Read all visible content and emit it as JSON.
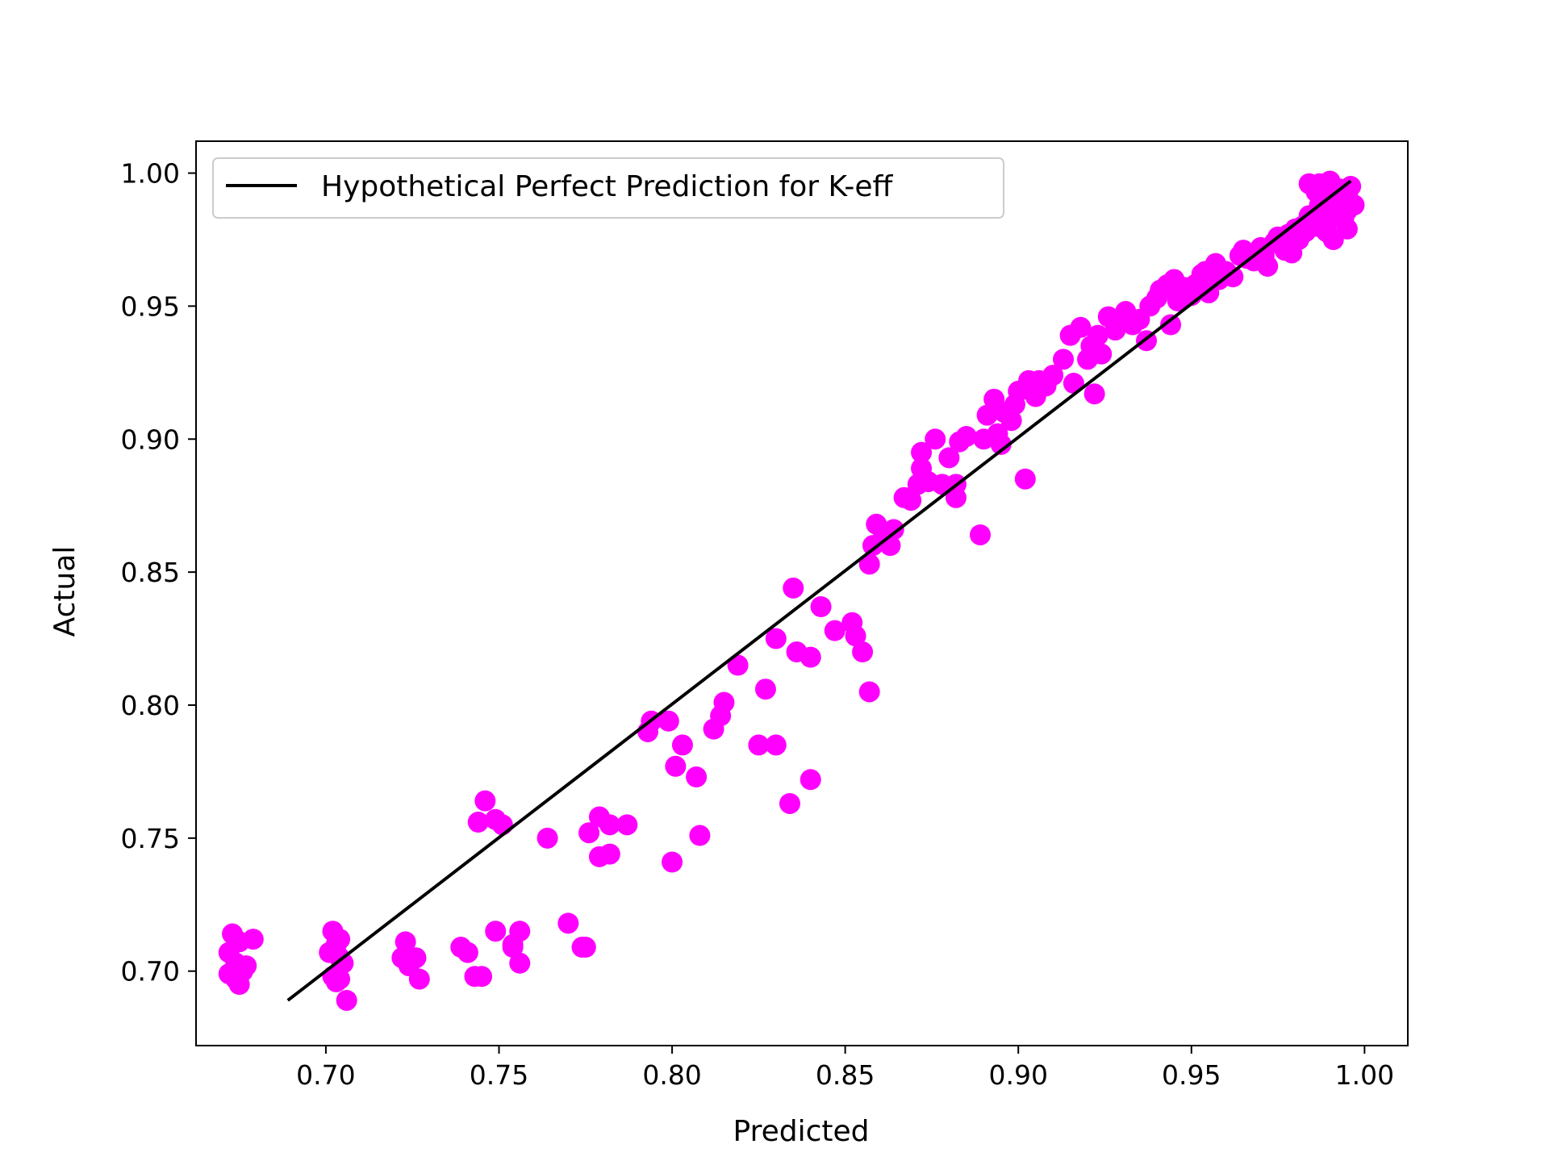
{
  "chart_data": {
    "type": "scatter",
    "title": "",
    "xlabel": "Predicted",
    "ylabel": "Actual",
    "xlim": [
      0.6625,
      1.0125
    ],
    "ylim": [
      0.672,
      1.012
    ],
    "xticks": [
      "0.70",
      "0.75",
      "0.80",
      "0.85",
      "0.90",
      "0.95",
      "1.00"
    ],
    "yticks": [
      "0.70",
      "0.75",
      "0.80",
      "0.85",
      "0.90",
      "0.95",
      "1.00"
    ],
    "grid": false,
    "legend": {
      "position": "upper-left",
      "entries": [
        {
          "label": "Hypothetical Perfect Prediction for K-eff",
          "kind": "line",
          "color": "#000000"
        }
      ]
    },
    "series": [
      {
        "name": "Hypothetical Perfect Prediction for K-eff",
        "kind": "line",
        "color": "#000000",
        "points": [
          [
            0.689,
            0.689
          ],
          [
            0.996,
            0.997
          ]
        ]
      },
      {
        "kind": "scatter",
        "color": "#ff00ff",
        "points": [
          [
            0.673,
            0.714
          ],
          [
            0.672,
            0.707
          ],
          [
            0.675,
            0.711
          ],
          [
            0.674,
            0.703
          ],
          [
            0.672,
            0.699
          ],
          [
            0.674,
            0.697
          ],
          [
            0.675,
            0.695
          ],
          [
            0.676,
            0.7
          ],
          [
            0.677,
            0.702
          ],
          [
            0.679,
            0.712
          ],
          [
            0.702,
            0.715
          ],
          [
            0.703,
            0.71
          ],
          [
            0.701,
            0.707
          ],
          [
            0.704,
            0.712
          ],
          [
            0.704,
            0.705
          ],
          [
            0.705,
            0.703
          ],
          [
            0.702,
            0.698
          ],
          [
            0.703,
            0.696
          ],
          [
            0.704,
            0.697
          ],
          [
            0.706,
            0.689
          ],
          [
            0.723,
            0.711
          ],
          [
            0.722,
            0.705
          ],
          [
            0.724,
            0.702
          ],
          [
            0.726,
            0.705
          ],
          [
            0.727,
            0.697
          ],
          [
            0.739,
            0.709
          ],
          [
            0.741,
            0.707
          ],
          [
            0.743,
            0.698
          ],
          [
            0.745,
            0.698
          ],
          [
            0.749,
            0.715
          ],
          [
            0.754,
            0.71
          ],
          [
            0.756,
            0.715
          ],
          [
            0.756,
            0.703
          ],
          [
            0.754,
            0.709
          ],
          [
            0.746,
            0.764
          ],
          [
            0.744,
            0.756
          ],
          [
            0.749,
            0.757
          ],
          [
            0.751,
            0.755
          ],
          [
            0.764,
            0.75
          ],
          [
            0.77,
            0.718
          ],
          [
            0.774,
            0.709
          ],
          [
            0.775,
            0.709
          ],
          [
            0.776,
            0.752
          ],
          [
            0.779,
            0.758
          ],
          [
            0.782,
            0.755
          ],
          [
            0.787,
            0.755
          ],
          [
            0.779,
            0.743
          ],
          [
            0.782,
            0.744
          ],
          [
            0.793,
            0.79
          ],
          [
            0.794,
            0.794
          ],
          [
            0.799,
            0.794
          ],
          [
            0.801,
            0.777
          ],
          [
            0.803,
            0.785
          ],
          [
            0.807,
            0.773
          ],
          [
            0.808,
            0.751
          ],
          [
            0.8,
            0.741
          ],
          [
            0.812,
            0.791
          ],
          [
            0.814,
            0.796
          ],
          [
            0.815,
            0.801
          ],
          [
            0.819,
            0.815
          ],
          [
            0.825,
            0.785
          ],
          [
            0.827,
            0.806
          ],
          [
            0.83,
            0.785
          ],
          [
            0.83,
            0.825
          ],
          [
            0.834,
            0.763
          ],
          [
            0.835,
            0.844
          ],
          [
            0.836,
            0.82
          ],
          [
            0.84,
            0.818
          ],
          [
            0.84,
            0.772
          ],
          [
            0.843,
            0.837
          ],
          [
            0.847,
            0.828
          ],
          [
            0.852,
            0.831
          ],
          [
            0.853,
            0.826
          ],
          [
            0.855,
            0.82
          ],
          [
            0.857,
            0.805
          ],
          [
            0.857,
            0.853
          ],
          [
            0.858,
            0.86
          ],
          [
            0.859,
            0.868
          ],
          [
            0.861,
            0.865
          ],
          [
            0.863,
            0.86
          ],
          [
            0.864,
            0.866
          ],
          [
            0.867,
            0.878
          ],
          [
            0.869,
            0.877
          ],
          [
            0.871,
            0.883
          ],
          [
            0.872,
            0.889
          ],
          [
            0.872,
            0.895
          ],
          [
            0.874,
            0.884
          ],
          [
            0.876,
            0.9
          ],
          [
            0.878,
            0.883
          ],
          [
            0.88,
            0.893
          ],
          [
            0.882,
            0.878
          ],
          [
            0.882,
            0.883
          ],
          [
            0.883,
            0.899
          ],
          [
            0.885,
            0.901
          ],
          [
            0.889,
            0.864
          ],
          [
            0.89,
            0.9
          ],
          [
            0.891,
            0.909
          ],
          [
            0.893,
            0.915
          ],
          [
            0.894,
            0.902
          ],
          [
            0.895,
            0.898
          ],
          [
            0.896,
            0.91
          ],
          [
            0.898,
            0.907
          ],
          [
            0.899,
            0.913
          ],
          [
            0.9,
            0.918
          ],
          [
            0.902,
            0.885
          ],
          [
            0.903,
            0.922
          ],
          [
            0.905,
            0.916
          ],
          [
            0.906,
            0.922
          ],
          [
            0.908,
            0.92
          ],
          [
            0.91,
            0.924
          ],
          [
            0.913,
            0.93
          ],
          [
            0.915,
            0.939
          ],
          [
            0.916,
            0.921
          ],
          [
            0.918,
            0.942
          ],
          [
            0.92,
            0.93
          ],
          [
            0.921,
            0.935
          ],
          [
            0.922,
            0.917
          ],
          [
            0.923,
            0.939
          ],
          [
            0.924,
            0.932
          ],
          [
            0.926,
            0.946
          ],
          [
            0.928,
            0.941
          ],
          [
            0.929,
            0.944
          ],
          [
            0.931,
            0.948
          ],
          [
            0.933,
            0.943
          ],
          [
            0.935,
            0.945
          ],
          [
            0.937,
            0.937
          ],
          [
            0.938,
            0.95
          ],
          [
            0.94,
            0.953
          ],
          [
            0.941,
            0.956
          ],
          [
            0.943,
            0.958
          ],
          [
            0.944,
            0.943
          ],
          [
            0.945,
            0.96
          ],
          [
            0.946,
            0.952
          ],
          [
            0.948,
            0.957
          ],
          [
            0.95,
            0.954
          ],
          [
            0.951,
            0.958
          ],
          [
            0.953,
            0.962
          ],
          [
            0.954,
            0.963
          ],
          [
            0.955,
            0.955
          ],
          [
            0.957,
            0.966
          ],
          [
            0.958,
            0.96
          ],
          [
            0.96,
            0.963
          ],
          [
            0.962,
            0.961
          ],
          [
            0.964,
            0.969
          ],
          [
            0.965,
            0.971
          ],
          [
            0.966,
            0.968
          ],
          [
            0.968,
            0.967
          ],
          [
            0.97,
            0.972
          ],
          [
            0.971,
            0.969
          ],
          [
            0.972,
            0.965
          ],
          [
            0.974,
            0.974
          ],
          [
            0.975,
            0.976
          ],
          [
            0.976,
            0.973
          ],
          [
            0.977,
            0.971
          ],
          [
            0.978,
            0.977
          ],
          [
            0.979,
            0.97
          ],
          [
            0.98,
            0.979
          ],
          [
            0.981,
            0.975
          ],
          [
            0.982,
            0.98
          ],
          [
            0.983,
            0.978
          ],
          [
            0.984,
            0.984
          ],
          [
            0.984,
            0.996
          ],
          [
            0.985,
            0.982
          ],
          [
            0.986,
            0.993
          ],
          [
            0.987,
            0.988
          ],
          [
            0.987,
            0.996
          ],
          [
            0.988,
            0.986
          ],
          [
            0.989,
            0.992
          ],
          [
            0.989,
            0.98
          ],
          [
            0.99,
            0.996
          ],
          [
            0.991,
            0.99
          ],
          [
            0.991,
            0.975
          ],
          [
            0.992,
            0.984
          ],
          [
            0.993,
            0.994
          ],
          [
            0.993,
            0.987
          ],
          [
            0.994,
            0.99
          ],
          [
            0.994,
            0.983
          ],
          [
            0.995,
            0.986
          ],
          [
            0.995,
            0.992
          ],
          [
            0.996,
            0.989
          ],
          [
            0.996,
            0.995
          ],
          [
            0.997,
            0.988
          ],
          [
            0.995,
            0.979
          ],
          [
            0.989,
            0.978
          ],
          [
            0.986,
            0.98
          ],
          [
            0.988,
            0.995
          ],
          [
            0.99,
            0.997
          ]
        ]
      }
    ]
  }
}
